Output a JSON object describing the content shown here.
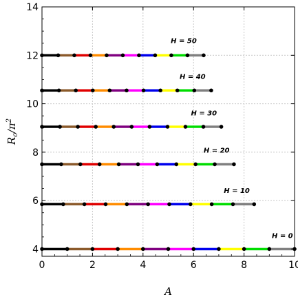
{
  "chart_data": {
    "type": "line",
    "xlabel": "A",
    "ylabel_main": "R",
    "ylabel_sub": "c",
    "ylabel_denominator": "π",
    "ylabel_power": "2",
    "xlim": [
      0,
      10
    ],
    "ylim": [
      3.7,
      14
    ],
    "x_ticks": [
      0,
      2,
      4,
      6,
      8,
      10
    ],
    "y_ticks": [
      4,
      6,
      8,
      10,
      12,
      14
    ],
    "grid": true,
    "segment_colors": [
      "#000000",
      "#8B5A2B",
      "#E00000",
      "#FF8C00",
      "#800080",
      "#FF00FF",
      "#0000EE",
      "#FFFF00",
      "#00DD00",
      "#808080"
    ],
    "series": [
      {
        "label": "H = 0",
        "y": 4.0,
        "nodes": [
          0,
          1,
          2,
          3,
          4,
          5,
          6,
          7,
          8,
          9,
          10
        ],
        "label_x": 9.1,
        "label_y": 4.45
      },
      {
        "label": "H = 10",
        "y": 5.85,
        "nodes": [
          0,
          0.84,
          1.68,
          2.52,
          3.36,
          4.2,
          5.04,
          5.88,
          6.72,
          7.56,
          8.4
        ],
        "label_x": 7.2,
        "label_y": 6.32
      },
      {
        "label": "H = 20",
        "y": 7.5,
        "nodes": [
          0,
          0.76,
          1.52,
          2.28,
          3.04,
          3.8,
          4.56,
          5.32,
          6.08,
          6.84,
          7.6
        ],
        "label_x": 6.4,
        "label_y": 7.98
      },
      {
        "label": "H = 30",
        "y": 9.05,
        "nodes": [
          0,
          0.71,
          1.42,
          2.13,
          2.84,
          3.55,
          4.26,
          4.97,
          5.68,
          6.39,
          7.1
        ],
        "label_x": 5.9,
        "label_y": 9.52
      },
      {
        "label": "H = 40",
        "y": 10.55,
        "nodes": [
          0,
          0.67,
          1.34,
          2.01,
          2.68,
          3.35,
          4.02,
          4.69,
          5.36,
          6.03,
          6.7
        ],
        "label_x": 5.45,
        "label_y": 11.02
      },
      {
        "label": "H = 50",
        "y": 12.0,
        "nodes": [
          0,
          0.64,
          1.28,
          1.92,
          2.56,
          3.2,
          3.84,
          4.48,
          5.12,
          5.76,
          6.4
        ],
        "label_x": 5.1,
        "label_y": 12.5
      }
    ]
  }
}
